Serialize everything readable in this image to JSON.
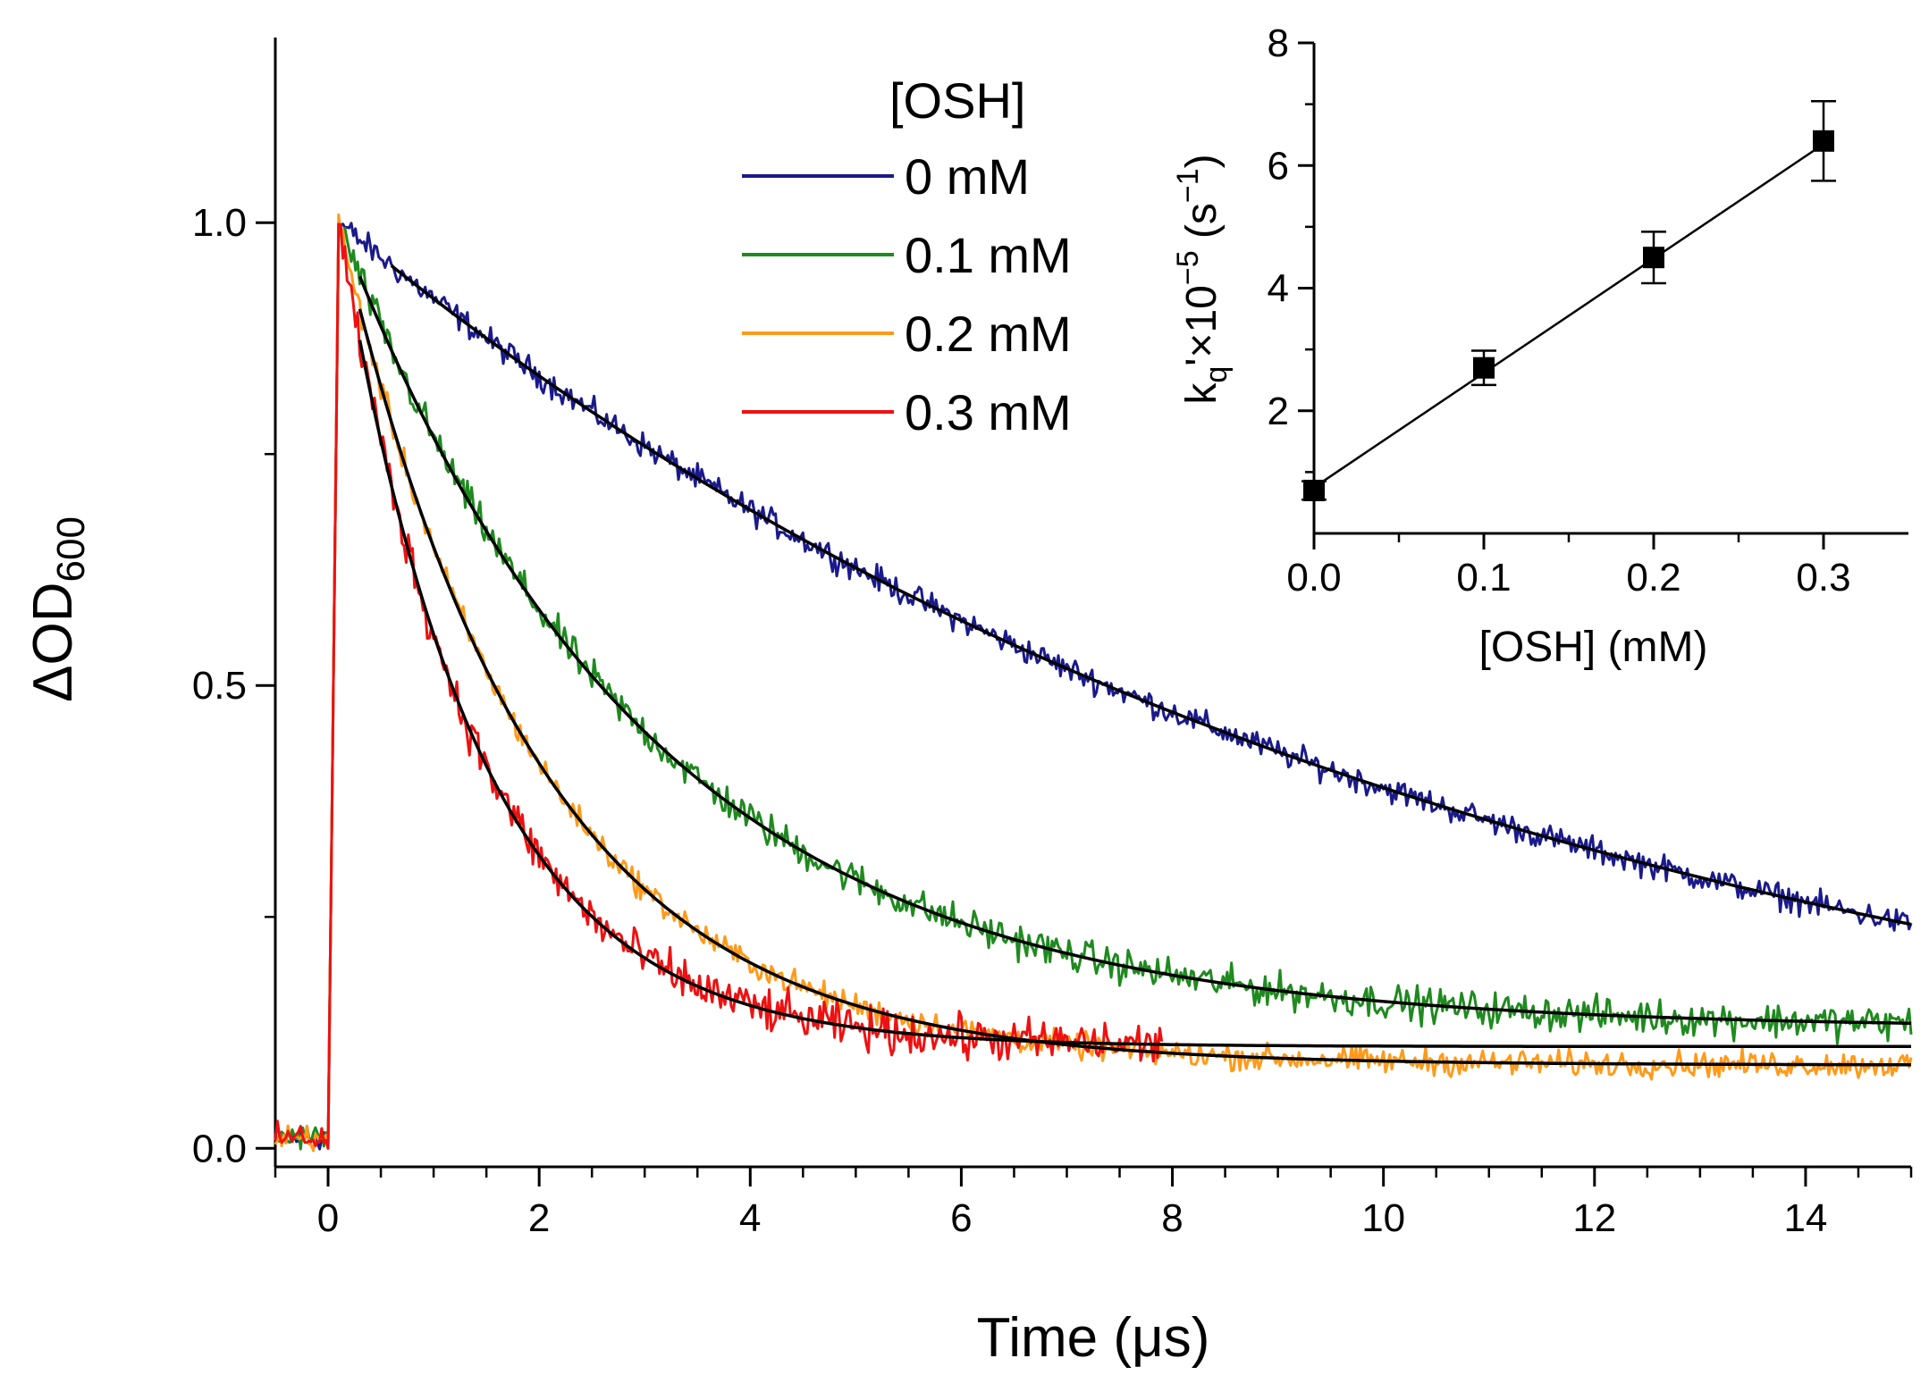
{
  "chart_data": [
    {
      "type": "line",
      "title": "",
      "xlabel": "Time (μs)",
      "ylabel_main": "ΔOD",
      "ylabel_sub": "600",
      "xlim": [
        -0.5,
        15
      ],
      "ylim": [
        -0.02,
        1.2
      ],
      "x_ticks": [
        0,
        2,
        4,
        6,
        8,
        10,
        12,
        14
      ],
      "x_tick_labels": [
        "0",
        "2",
        "4",
        "6",
        "8",
        "10",
        "12",
        "14"
      ],
      "y_ticks": [
        0.0,
        0.5,
        1.0
      ],
      "y_tick_labels": [
        "0.0",
        "0.5",
        "1.0"
      ],
      "legend_title": "[OSH]",
      "legend_position": "top-center",
      "series": [
        {
          "name": "0 mM",
          "color": "#1a1a8c",
          "tau": 10.5,
          "baseline": 0.0,
          "noise": 0.012,
          "fit_start": 0.6,
          "x_end": 15
        },
        {
          "name": "0.1 mM",
          "color": "#1f8a1f",
          "tau": 2.9,
          "baseline": 0.13,
          "noise": 0.016,
          "fit_start": 0.3,
          "x_end": 15
        },
        {
          "name": "0.2 mM",
          "color": "#ff9a1a",
          "tau": 1.85,
          "baseline": 0.09,
          "noise": 0.012,
          "fit_start": 0.3,
          "x_end": 15
        },
        {
          "name": "0.3 mM",
          "color": "#ee1111",
          "tau": 1.3,
          "baseline": 0.11,
          "noise": 0.02,
          "fit_start": 0.3,
          "x_end": 7.9
        }
      ],
      "fit_color": "#000000"
    },
    {
      "type": "scatter",
      "title": "",
      "xlabel": "[OSH] (mM)",
      "ylabel": "k_q'×10^-5 (s^-1)",
      "ylabel_parts": {
        "k": "k",
        "q": "q",
        "mid": "'×10",
        "exp": "−5",
        "unit_open": " (s",
        "unit_exp": "−1",
        "unit_close": ")"
      },
      "xlim": [
        0,
        0.35
      ],
      "ylim": [
        0,
        8
      ],
      "x_ticks": [
        0.0,
        0.1,
        0.2,
        0.3
      ],
      "x_tick_labels": [
        "0.0",
        "0.1",
        "0.2",
        "0.3"
      ],
      "y_ticks": [
        2,
        4,
        6,
        8
      ],
      "y_tick_labels": [
        "2",
        "4",
        "6",
        "8"
      ],
      "x": [
        0.0,
        0.1,
        0.2,
        0.3
      ],
      "y": [
        0.7,
        2.7,
        4.5,
        6.4
      ],
      "yerr": [
        0.15,
        0.28,
        0.42,
        0.65
      ],
      "fit_line": {
        "x": [
          0.0,
          0.3
        ],
        "y": [
          0.75,
          6.35
        ]
      }
    }
  ]
}
